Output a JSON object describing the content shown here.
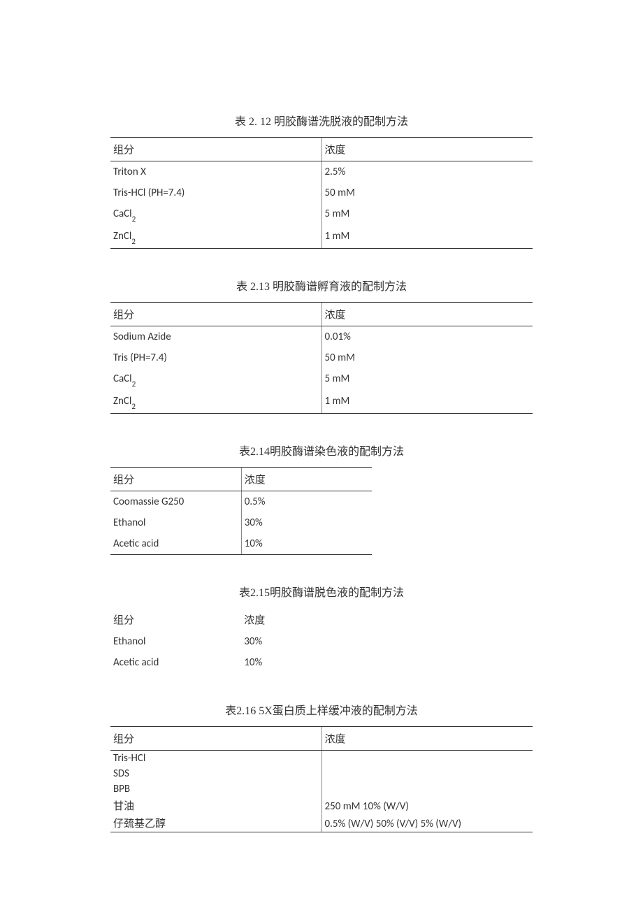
{
  "tables": [
    {
      "id": "t212",
      "caption": "表 2. 12 明胶酶谱洗脱液的配制方法",
      "caption_font": "SimSun",
      "header": {
        "component": "组分",
        "concentration": "浓度"
      },
      "rows": [
        {
          "component": "Triton X",
          "component_sub": "",
          "concentration": "2.5%"
        },
        {
          "component": "Tris-HCl (PH=7.4)",
          "component_sub": "",
          "concentration": "50 mM"
        },
        {
          "component": "CaCl",
          "component_sub": "2",
          "concentration": "5 mM"
        },
        {
          "component": "ZnCl",
          "component_sub": "2",
          "concentration": "1 mM"
        }
      ],
      "style": {
        "width_pct": 100,
        "has_divider": true,
        "has_borders": true
      }
    },
    {
      "id": "t213",
      "caption": "表 2.13 明胶酶谱孵育液的配制方法",
      "caption_font": "SimSun",
      "header": {
        "component": "组分",
        "concentration": "浓度"
      },
      "rows": [
        {
          "component": "Sodium Azide",
          "component_sub": "",
          "concentration": "0.01%"
        },
        {
          "component": "Tris (PH=7.4)",
          "component_sub": "",
          "concentration": "50 mM"
        },
        {
          "component": "CaCl",
          "component_sub": "2",
          "concentration": "5 mM"
        },
        {
          "component": "ZnCl",
          "component_sub": "2",
          "concentration": "1 mM"
        }
      ],
      "style": {
        "width_pct": 100,
        "has_divider": true,
        "has_borders": true
      }
    },
    {
      "id": "t214",
      "caption": "表2.14明胶酶谱染色液的配制方法",
      "caption_font": "SimSun",
      "header": {
        "component": "组分",
        "concentration": "浓度"
      },
      "rows": [
        {
          "component": "Coomassie G250",
          "component_sub": "",
          "concentration": "0.5%"
        },
        {
          "component": "Ethanol",
          "component_sub": "",
          "concentration": "30%"
        },
        {
          "component": "Acetic acid",
          "component_sub": "",
          "concentration": "10%"
        }
      ],
      "style": {
        "width_pct": 62,
        "has_divider": true,
        "has_borders": true
      }
    },
    {
      "id": "t215",
      "caption": "表2.15明胶酶谱脱色液的配制方法",
      "caption_font": "SimSun",
      "header": {
        "component": "组分",
        "concentration": "浓度"
      },
      "rows": [
        {
          "component": "Ethanol",
          "component_sub": "",
          "concentration": "30%"
        },
        {
          "component": "Acetic acid",
          "component_sub": "",
          "concentration": "10%"
        }
      ],
      "style": {
        "width_pct": 62,
        "has_divider": false,
        "has_borders": false
      }
    },
    {
      "id": "t216",
      "caption": "表2.16 5X蛋白质上样缓冲液的配制方法",
      "caption_font": "SimSun",
      "header": {
        "component": "组分",
        "concentration": "浓度"
      },
      "rows": [
        {
          "component": "Tris-HCl",
          "component_sub": "",
          "concentration": ""
        },
        {
          "component": "SDS",
          "component_sub": "",
          "concentration": ""
        },
        {
          "component": "BPB",
          "component_sub": "",
          "concentration": ""
        },
        {
          "component": "甘油",
          "component_sub": "",
          "concentration": "250 mM 10% (W/V)"
        },
        {
          "component": "仔巯基乙醇",
          "component_sub": "",
          "concentration": "0.5% (W/V) 50% (V/V) 5% (W/V)"
        }
      ],
      "style": {
        "width_pct": 100,
        "has_divider": true,
        "has_borders": true
      }
    }
  ],
  "colors": {
    "text": "#333333",
    "border": "#333333",
    "divider": "#888888",
    "background": "#ffffff"
  },
  "typography": {
    "caption_fontsize_pt": 12,
    "body_fontsize_pt": 11,
    "header_font": "SimSun",
    "body_font": "Calibri"
  }
}
